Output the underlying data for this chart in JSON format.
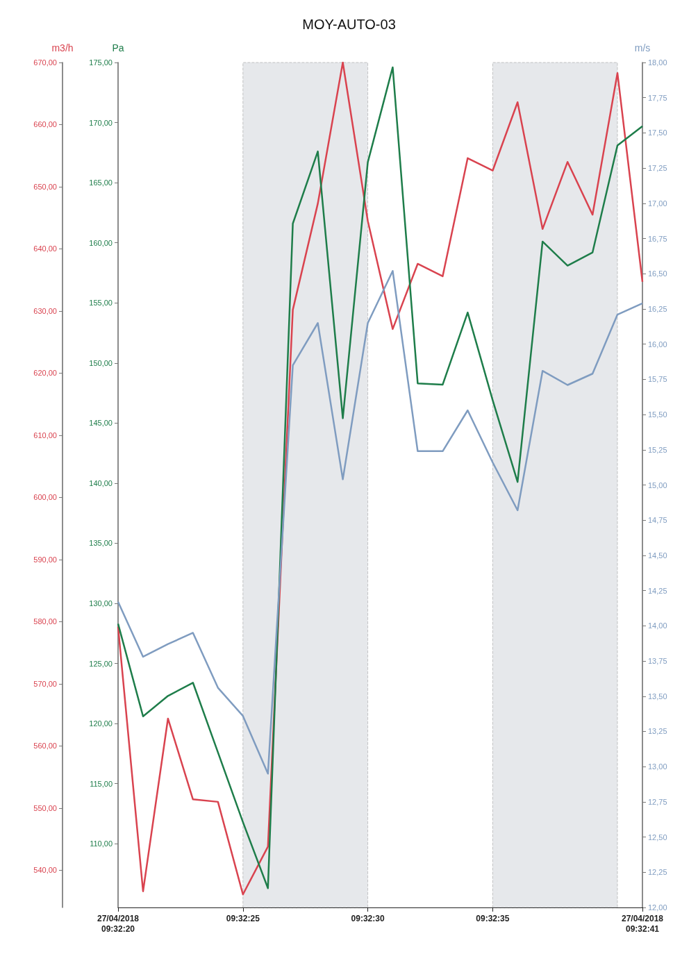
{
  "chart_data": {
    "type": "line",
    "title": "MOY-AUTO-03",
    "ylabel": "m3/h",
    "y2label": "Pa",
    "y3label": "m/s",
    "line_style": "solid",
    "grid": false,
    "x": [
      9.538889,
      9.539167,
      9.539444,
      9.539722,
      9.54,
      9.540278,
      9.540556,
      9.540833,
      9.541111,
      9.541389,
      9.541667,
      9.541944,
      9.542222,
      9.5425,
      9.542778,
      9.543056,
      9.543333,
      9.543611,
      9.543889,
      9.544167,
      9.544444,
      9.544722
    ],
    "xlim": [
      9.538889,
      9.544722
    ],
    "xticks": [
      {
        "value": 9.538889,
        "label": "27/04/2018\n09:32:20"
      },
      {
        "value": 9.540278,
        "label": "09:32:25"
      },
      {
        "value": 9.541667,
        "label": "09:32:30"
      },
      {
        "value": 9.543056,
        "label": "09:32:35"
      },
      {
        "value": 9.544722,
        "label": "27/04/2018\n09:32:41"
      }
    ],
    "ylim": [
      534,
      670
    ],
    "yticks": [
      {
        "value": 540,
        "label": "540,00"
      },
      {
        "value": 550,
        "label": "550,00"
      },
      {
        "value": 560,
        "label": "560,00"
      },
      {
        "value": 570,
        "label": "570,00"
      },
      {
        "value": 580,
        "label": "580,00"
      },
      {
        "value": 590,
        "label": "590,00"
      },
      {
        "value": 600,
        "label": "600,00"
      },
      {
        "value": 610,
        "label": "610,00"
      },
      {
        "value": 620,
        "label": "620,00"
      },
      {
        "value": 630,
        "label": "630,00"
      },
      {
        "value": 640,
        "label": "640,00"
      },
      {
        "value": 650,
        "label": "650,00"
      },
      {
        "value": 660,
        "label": "660,00"
      },
      {
        "value": 670,
        "label": "670,00"
      }
    ],
    "y2lim": [
      104.7,
      175
    ],
    "y2ticks": [
      {
        "value": 110,
        "label": "110,00"
      },
      {
        "value": 115,
        "label": "115,00"
      },
      {
        "value": 120,
        "label": "120,00"
      },
      {
        "value": 125,
        "label": "125,00"
      },
      {
        "value": 130,
        "label": "130,00"
      },
      {
        "value": 135,
        "label": "135,00"
      },
      {
        "value": 140,
        "label": "140,00"
      },
      {
        "value": 145,
        "label": "145,00"
      },
      {
        "value": 150,
        "label": "150,00"
      },
      {
        "value": 155,
        "label": "155,00"
      },
      {
        "value": 160,
        "label": "160,00"
      },
      {
        "value": 165,
        "label": "165,00"
      },
      {
        "value": 170,
        "label": "170,00"
      },
      {
        "value": 175,
        "label": "175,00"
      }
    ],
    "y3lim": [
      12,
      18
    ],
    "y3ticks": [
      {
        "value": 12,
        "label": "12,00"
      },
      {
        "value": 12.25,
        "label": "12,25"
      },
      {
        "value": 12.5,
        "label": "12,50"
      },
      {
        "value": 12.75,
        "label": "12,75"
      },
      {
        "value": 13,
        "label": "13,00"
      },
      {
        "value": 13.25,
        "label": "13,25"
      },
      {
        "value": 13.5,
        "label": "13,50"
      },
      {
        "value": 13.75,
        "label": "13,75"
      },
      {
        "value": 14,
        "label": "14,00"
      },
      {
        "value": 14.25,
        "label": "14,25"
      },
      {
        "value": 14.5,
        "label": "14,50"
      },
      {
        "value": 14.75,
        "label": "14,75"
      },
      {
        "value": 15,
        "label": "15,00"
      },
      {
        "value": 15.25,
        "label": "15,25"
      },
      {
        "value": 15.5,
        "label": "15,50"
      },
      {
        "value": 15.75,
        "label": "15,75"
      },
      {
        "value": 16,
        "label": "16,00"
      },
      {
        "value": 16.25,
        "label": "16,25"
      },
      {
        "value": 16.5,
        "label": "16,50"
      },
      {
        "value": 16.75,
        "label": "16,75"
      },
      {
        "value": 17,
        "label": "17,00"
      },
      {
        "value": 17.25,
        "label": "17,25"
      },
      {
        "value": 17.5,
        "label": "17,50"
      },
      {
        "value": 17.75,
        "label": "17,75"
      },
      {
        "value": 18,
        "label": "18,00"
      }
    ],
    "bands": [
      {
        "axis": "x",
        "from": 9.540278,
        "to": 9.541667,
        "color": "#c8cdd3"
      },
      {
        "axis": "x",
        "from": 9.543056,
        "to": 9.544444,
        "color": "#c8cdd3"
      }
    ],
    "series": [
      {
        "color": "#d9434f",
        "axis": "y",
        "values": [
          579.2,
          536.6,
          564.4,
          551.4,
          551,
          536.1,
          543.8,
          630.2,
          647.3,
          670,
          644.5,
          627.1,
          637.6,
          635.6,
          654.6,
          652.6,
          663.6,
          643.2,
          654,
          645.5,
          668.3,
          634.7
        ]
      },
      {
        "color": "#1e7d4a",
        "axis": "y2",
        "values": [
          128.3,
          120.6,
          122.3,
          123.4,
          117.6,
          111.8,
          106.3,
          161.6,
          167.6,
          145.4,
          166.7,
          174.6,
          148.3,
          148.2,
          154.2,
          146.9,
          140.1,
          160.1,
          158.1,
          159.2,
          168.1,
          169.7
        ]
      },
      {
        "color": "#7f9cc0",
        "axis": "y3",
        "values": [
          14.17,
          13.78,
          13.87,
          13.95,
          13.56,
          13.36,
          12.95,
          15.85,
          16.15,
          15.04,
          16.15,
          16.52,
          15.24,
          15.24,
          15.53,
          15.16,
          14.82,
          15.81,
          15.71,
          15.79,
          16.21,
          16.29
        ]
      }
    ]
  }
}
